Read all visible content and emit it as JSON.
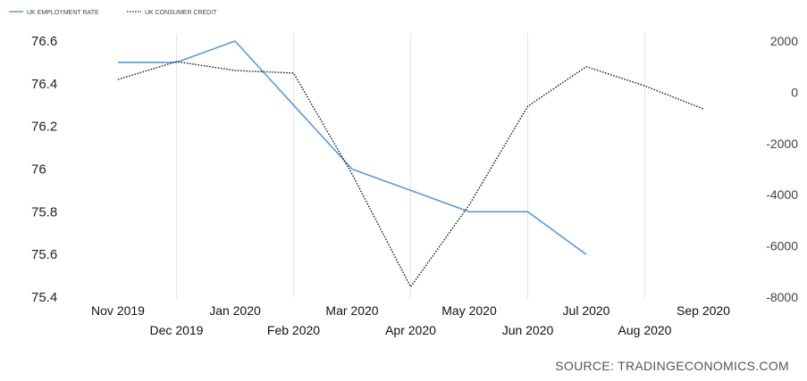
{
  "chart_data": {
    "type": "line",
    "legend": {
      "position": "top-left",
      "items": [
        "UK EMPLOYMENT RATE",
        "UK CONSUMER CREDIT"
      ]
    },
    "categories": [
      "Nov 2019",
      "Dec 2019",
      "Jan 2020",
      "Feb 2020",
      "Mar 2020",
      "Apr 2020",
      "May 2020",
      "Jun 2020",
      "Jul 2020",
      "Aug 2020",
      "Sep 2020"
    ],
    "series": [
      {
        "name": "UK EMPLOYMENT RATE",
        "axis": "left",
        "color": "#5b9bd5",
        "style": "solid",
        "values": [
          76.5,
          76.5,
          76.6,
          76.3,
          76.0,
          75.9,
          75.8,
          75.8,
          75.6,
          null,
          null
        ]
      },
      {
        "name": "UK CONSUMER CREDIT",
        "axis": "right",
        "color": "#222222",
        "style": "dotted",
        "values": [
          500,
          1200,
          850,
          750,
          -3200,
          -7600,
          -4400,
          -550,
          1000,
          250,
          -650
        ]
      }
    ],
    "y_left": {
      "ticks": [
        "76.6",
        "76.4",
        "76.2",
        "76",
        "75.8",
        "75.6",
        "75.4"
      ],
      "tick_values": [
        76.6,
        76.4,
        76.2,
        76.0,
        75.8,
        75.6,
        75.4
      ],
      "range": [
        75.4,
        76.6
      ]
    },
    "y_right": {
      "ticks": [
        "2000",
        "0",
        "-2000",
        "-4000",
        "-6000",
        "-8000"
      ],
      "tick_values": [
        2000,
        0,
        -2000,
        -4000,
        -6000,
        -8000
      ],
      "range": [
        -8000,
        2000
      ]
    },
    "x_tick_labels": [
      "Nov 2019",
      "Dec 2019",
      "Jan 2020",
      "Feb 2020",
      "Mar 2020",
      "Apr 2020",
      "May 2020",
      "Jun 2020",
      "Jul 2020",
      "Aug 2020",
      "Sep 2020"
    ],
    "grid": "vertical",
    "source": "SOURCE: TRADINGECONOMICS.COM"
  }
}
